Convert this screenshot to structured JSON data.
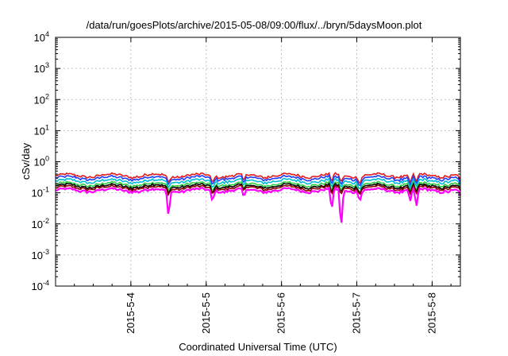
{
  "chart_data": {
    "type": "line",
    "title": "/data/run/goesPlots/archive/2015-05-08/09:00/flux/../bryn/5daysMoon.plot",
    "xlabel": "Coordinated Universal Time (UTC)",
    "ylabel": "cSv/day",
    "yscale": "log",
    "ylim": [
      0.0001,
      10000
    ],
    "xlim": [
      "2015-05-03 00:00",
      "2015-05-08 09:00"
    ],
    "grid": true,
    "y_ticks": [
      {
        "base": "10",
        "exp": "-4",
        "value": 0.0001
      },
      {
        "base": "10",
        "exp": "-3",
        "value": 0.001
      },
      {
        "base": "10",
        "exp": "-2",
        "value": 0.01
      },
      {
        "base": "10",
        "exp": "-1",
        "value": 0.1
      },
      {
        "base": "10",
        "exp": "0",
        "value": 1
      },
      {
        "base": "10",
        "exp": "1",
        "value": 10
      },
      {
        "base": "10",
        "exp": "2",
        "value": 100
      },
      {
        "base": "10",
        "exp": "3",
        "value": 1000
      },
      {
        "base": "10",
        "exp": "4",
        "value": 10000
      }
    ],
    "x_ticks": [
      "2015-5-4",
      "2015-5-5",
      "2015-5-6",
      "2015-5-7",
      "2015-5-8"
    ],
    "series": [
      {
        "color": "#e31a1c",
        "base": 0.36
      },
      {
        "color": "#1f3cff",
        "base": 0.3
      },
      {
        "color": "#00bcd4",
        "base": 0.24
      },
      {
        "color": "#2ecc40",
        "base": 0.19
      },
      {
        "color": "#000000",
        "base": 0.165
      },
      {
        "color": "#8b0000",
        "base": 0.145
      },
      {
        "color": "#ff00ff",
        "base": 0.12
      }
    ],
    "dips": [
      {
        "day": "2015-05-04 12:00",
        "min": 0.015
      },
      {
        "day": "2015-05-05 02:00",
        "min": 0.05
      },
      {
        "day": "2015-05-05 12:00",
        "min": 0.06
      },
      {
        "day": "2015-05-06 16:00",
        "min": 0.025
      },
      {
        "day": "2015-05-06 19:00",
        "min": 0.006
      },
      {
        "day": "2015-05-07 01:00",
        "min": 0.06
      },
      {
        "day": "2015-05-07 17:00",
        "min": 0.05
      },
      {
        "day": "2015-05-07 19:00",
        "min": 0.03
      },
      {
        "day": "2015-05-08 09:00",
        "min": 0.07
      }
    ]
  }
}
